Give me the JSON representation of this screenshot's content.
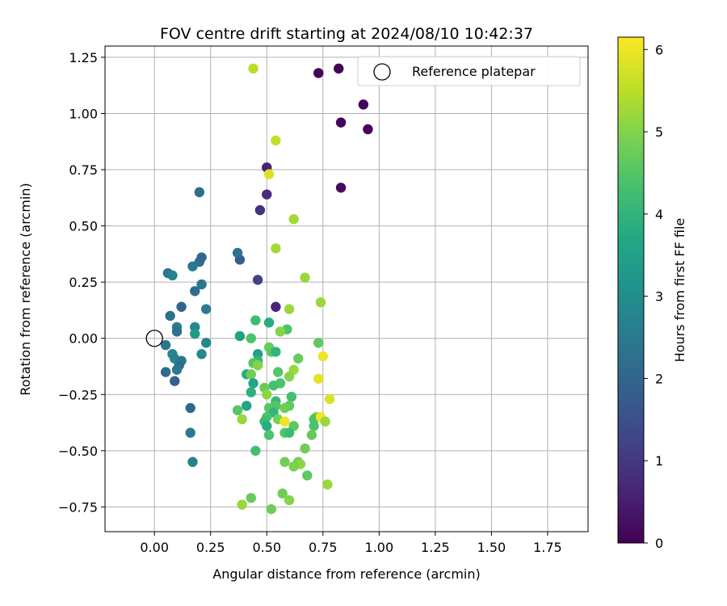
{
  "chart_data": {
    "type": "scatter",
    "title": "FOV centre drift starting at 2024/08/10 10:42:37",
    "xlabel": "Angular distance from reference (arcmin)",
    "ylabel": "Rotation from reference (arcmin)",
    "xlim": [
      -0.22,
      1.93
    ],
    "ylim": [
      -0.86,
      1.3
    ],
    "xticks": [
      0.0,
      0.25,
      0.5,
      0.75,
      1.0,
      1.25,
      1.5,
      1.75
    ],
    "xtick_labels": [
      "0.00",
      "0.25",
      "0.50",
      "0.75",
      "1.00",
      "1.25",
      "1.50",
      "1.75"
    ],
    "yticks": [
      -0.75,
      -0.5,
      -0.25,
      0.0,
      0.25,
      0.5,
      0.75,
      1.0,
      1.25
    ],
    "ytick_labels": [
      "−0.75",
      "−0.50",
      "−0.25",
      "0.00",
      "0.25",
      "0.50",
      "0.75",
      "1.00",
      "1.25"
    ],
    "grid": true,
    "legend": {
      "label": "Reference platepar",
      "placement": "top-right"
    },
    "reference_point": {
      "x": 0.0,
      "y": 0.0
    },
    "colorbar": {
      "label": "Hours from first FF file",
      "range": [
        0,
        6.15
      ],
      "ticks": [
        0,
        1,
        2,
        3,
        4,
        5,
        6
      ],
      "tick_labels": [
        "0",
        "1",
        "2",
        "3",
        "4",
        "5",
        "6"
      ],
      "colormap": "viridis"
    },
    "points": [
      {
        "x": 0.73,
        "y": 1.18,
        "c": 0.05
      },
      {
        "x": 0.82,
        "y": 1.2,
        "c": 0.02
      },
      {
        "x": 0.93,
        "y": 1.04,
        "c": 0.07
      },
      {
        "x": 0.95,
        "y": 0.93,
        "c": 0.03
      },
      {
        "x": 0.83,
        "y": 0.96,
        "c": 0.1
      },
      {
        "x": 0.83,
        "y": 0.67,
        "c": 0.15
      },
      {
        "x": 0.5,
        "y": 0.76,
        "c": 0.6
      },
      {
        "x": 0.5,
        "y": 0.64,
        "c": 0.8
      },
      {
        "x": 0.47,
        "y": 0.57,
        "c": 0.9
      },
      {
        "x": 0.46,
        "y": 0.26,
        "c": 1.2
      },
      {
        "x": 0.54,
        "y": 0.14,
        "c": 0.7
      },
      {
        "x": 0.2,
        "y": 0.65,
        "c": 2.2
      },
      {
        "x": 0.38,
        "y": 0.35,
        "c": 1.8
      },
      {
        "x": 0.37,
        "y": 0.38,
        "c": 2.3
      },
      {
        "x": 0.06,
        "y": 0.29,
        "c": 2.4
      },
      {
        "x": 0.08,
        "y": 0.28,
        "c": 2.7
      },
      {
        "x": 0.17,
        "y": 0.32,
        "c": 2.5
      },
      {
        "x": 0.2,
        "y": 0.34,
        "c": 2.3
      },
      {
        "x": 0.21,
        "y": 0.36,
        "c": 2.1
      },
      {
        "x": 0.21,
        "y": 0.24,
        "c": 2.4
      },
      {
        "x": 0.18,
        "y": 0.21,
        "c": 2.2
      },
      {
        "x": 0.23,
        "y": 0.13,
        "c": 2.6
      },
      {
        "x": 0.12,
        "y": 0.14,
        "c": 2.0
      },
      {
        "x": 0.07,
        "y": 0.1,
        "c": 2.3
      },
      {
        "x": 0.1,
        "y": 0.05,
        "c": 2.6
      },
      {
        "x": 0.1,
        "y": 0.03,
        "c": 2.3
      },
      {
        "x": 0.18,
        "y": 0.05,
        "c": 2.9
      },
      {
        "x": 0.18,
        "y": 0.02,
        "c": 3.3
      },
      {
        "x": 0.23,
        "y": -0.02,
        "c": 2.8
      },
      {
        "x": 0.05,
        "y": -0.03,
        "c": 2.4
      },
      {
        "x": 0.21,
        "y": -0.07,
        "c": 2.9
      },
      {
        "x": 0.08,
        "y": -0.07,
        "c": 2.8
      },
      {
        "x": 0.09,
        "y": -0.09,
        "c": 2.7
      },
      {
        "x": 0.12,
        "y": -0.1,
        "c": 2.5
      },
      {
        "x": 0.11,
        "y": -0.12,
        "c": 2.2
      },
      {
        "x": 0.1,
        "y": -0.14,
        "c": 2.5
      },
      {
        "x": 0.05,
        "y": -0.15,
        "c": 2.1
      },
      {
        "x": 0.09,
        "y": -0.19,
        "c": 1.9
      },
      {
        "x": 0.16,
        "y": -0.31,
        "c": 2.1
      },
      {
        "x": 0.16,
        "y": -0.42,
        "c": 2.5
      },
      {
        "x": 0.17,
        "y": -0.55,
        "c": 2.7
      },
      {
        "x": 0.44,
        "y": 1.2,
        "c": 5.5
      },
      {
        "x": 0.54,
        "y": 0.88,
        "c": 5.6
      },
      {
        "x": 0.51,
        "y": 0.73,
        "c": 5.8
      },
      {
        "x": 0.62,
        "y": 0.53,
        "c": 5.3
      },
      {
        "x": 0.54,
        "y": 0.4,
        "c": 5.3
      },
      {
        "x": 0.67,
        "y": 0.27,
        "c": 5.2
      },
      {
        "x": 0.74,
        "y": 0.16,
        "c": 5.2
      },
      {
        "x": 0.6,
        "y": 0.13,
        "c": 5.2
      },
      {
        "x": 0.45,
        "y": 0.08,
        "c": 4.2
      },
      {
        "x": 0.51,
        "y": 0.07,
        "c": 3.8
      },
      {
        "x": 0.59,
        "y": 0.04,
        "c": 4.4
      },
      {
        "x": 0.56,
        "y": 0.03,
        "c": 5.0
      },
      {
        "x": 0.38,
        "y": 0.01,
        "c": 3.5
      },
      {
        "x": 0.43,
        "y": 0.0,
        "c": 4.4
      },
      {
        "x": 0.73,
        "y": -0.02,
        "c": 4.6
      },
      {
        "x": 0.51,
        "y": -0.04,
        "c": 4.7
      },
      {
        "x": 0.52,
        "y": -0.06,
        "c": 4.6
      },
      {
        "x": 0.54,
        "y": -0.06,
        "c": 4.0
      },
      {
        "x": 0.46,
        "y": -0.07,
        "c": 3.5
      },
      {
        "x": 0.46,
        "y": -0.1,
        "c": 4.0
      },
      {
        "x": 0.44,
        "y": -0.11,
        "c": 4.5
      },
      {
        "x": 0.75,
        "y": -0.08,
        "c": 6.0
      },
      {
        "x": 0.64,
        "y": -0.09,
        "c": 4.7
      },
      {
        "x": 0.46,
        "y": -0.12,
        "c": 5.0
      },
      {
        "x": 0.62,
        "y": -0.14,
        "c": 5.2
      },
      {
        "x": 0.41,
        "y": -0.16,
        "c": 3.8
      },
      {
        "x": 0.43,
        "y": -0.16,
        "c": 4.8
      },
      {
        "x": 0.55,
        "y": -0.15,
        "c": 4.5
      },
      {
        "x": 0.6,
        "y": -0.17,
        "c": 5.0
      },
      {
        "x": 0.73,
        "y": -0.18,
        "c": 5.9
      },
      {
        "x": 0.56,
        "y": -0.2,
        "c": 4.4
      },
      {
        "x": 0.44,
        "y": -0.2,
        "c": 3.6
      },
      {
        "x": 0.53,
        "y": -0.21,
        "c": 4.3
      },
      {
        "x": 0.49,
        "y": -0.22,
        "c": 4.7
      },
      {
        "x": 0.43,
        "y": -0.24,
        "c": 3.9
      },
      {
        "x": 0.5,
        "y": -0.25,
        "c": 5.1
      },
      {
        "x": 0.61,
        "y": -0.26,
        "c": 4.3
      },
      {
        "x": 0.54,
        "y": -0.28,
        "c": 4.1
      },
      {
        "x": 0.78,
        "y": -0.27,
        "c": 5.8
      },
      {
        "x": 0.41,
        "y": -0.3,
        "c": 3.6
      },
      {
        "x": 0.54,
        "y": -0.3,
        "c": 4.5
      },
      {
        "x": 0.6,
        "y": -0.3,
        "c": 4.6
      },
      {
        "x": 0.58,
        "y": -0.31,
        "c": 4.8
      },
      {
        "x": 0.51,
        "y": -0.31,
        "c": 4.5
      },
      {
        "x": 0.37,
        "y": -0.32,
        "c": 4.5
      },
      {
        "x": 0.53,
        "y": -0.33,
        "c": 4.0
      },
      {
        "x": 0.5,
        "y": -0.35,
        "c": 4.4
      },
      {
        "x": 0.72,
        "y": -0.35,
        "c": 5.0
      },
      {
        "x": 0.39,
        "y": -0.36,
        "c": 5.2
      },
      {
        "x": 0.55,
        "y": -0.36,
        "c": 4.9
      },
      {
        "x": 0.71,
        "y": -0.36,
        "c": 4.4
      },
      {
        "x": 0.74,
        "y": -0.35,
        "c": 6.0
      },
      {
        "x": 0.76,
        "y": -0.37,
        "c": 5.2
      },
      {
        "x": 0.49,
        "y": -0.37,
        "c": 4.2
      },
      {
        "x": 0.58,
        "y": -0.37,
        "c": 6.0
      },
      {
        "x": 0.5,
        "y": -0.39,
        "c": 3.8
      },
      {
        "x": 0.62,
        "y": -0.39,
        "c": 4.6
      },
      {
        "x": 0.71,
        "y": -0.39,
        "c": 4.4
      },
      {
        "x": 0.58,
        "y": -0.42,
        "c": 4.5
      },
      {
        "x": 0.51,
        "y": -0.43,
        "c": 4.4
      },
      {
        "x": 0.6,
        "y": -0.42,
        "c": 4.2
      },
      {
        "x": 0.7,
        "y": -0.43,
        "c": 4.7
      },
      {
        "x": 0.45,
        "y": -0.5,
        "c": 4.3
      },
      {
        "x": 0.67,
        "y": -0.49,
        "c": 4.8
      },
      {
        "x": 0.58,
        "y": -0.55,
        "c": 4.8
      },
      {
        "x": 0.64,
        "y": -0.55,
        "c": 4.8
      },
      {
        "x": 0.65,
        "y": -0.56,
        "c": 5.1
      },
      {
        "x": 0.62,
        "y": -0.57,
        "c": 4.9
      },
      {
        "x": 0.68,
        "y": -0.61,
        "c": 4.6
      },
      {
        "x": 0.77,
        "y": -0.65,
        "c": 5.2
      },
      {
        "x": 0.57,
        "y": -0.69,
        "c": 4.8
      },
      {
        "x": 0.43,
        "y": -0.71,
        "c": 4.7
      },
      {
        "x": 0.6,
        "y": -0.72,
        "c": 5.0
      },
      {
        "x": 0.39,
        "y": -0.74,
        "c": 5.2
      },
      {
        "x": 0.52,
        "y": -0.76,
        "c": 4.8
      }
    ]
  }
}
